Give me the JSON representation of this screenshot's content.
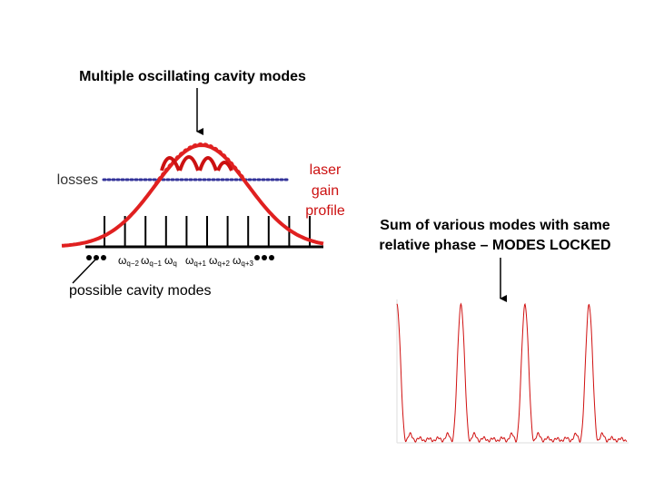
{
  "left_panel": {
    "title": "Multiple oscillating cavity modes",
    "losses_label": "losses",
    "gain_label": [
      "laser",
      "gain",
      "profile"
    ],
    "mode_labels": [
      {
        "symbol": "ω",
        "sub": "q−2"
      },
      {
        "symbol": "ω",
        "sub": "q−1"
      },
      {
        "symbol": "ω",
        "sub": "q"
      },
      {
        "symbol": "ω",
        "sub": "q+1"
      },
      {
        "symbol": "ω",
        "sub": "q+2"
      },
      {
        "symbol": "ω",
        "sub": "q+3"
      }
    ],
    "caption": "possible cavity modes"
  },
  "right_panel": {
    "title": [
      "Sum of various modes with same",
      "relative phase – MODES LOCKED"
    ]
  }
}
